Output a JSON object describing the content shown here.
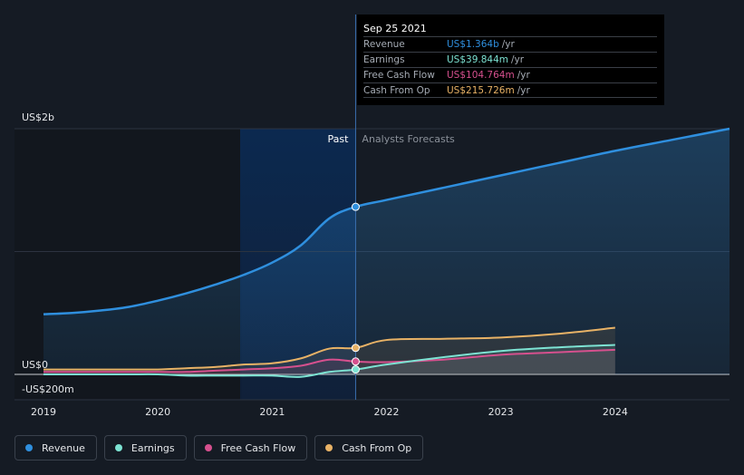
{
  "chart_data": {
    "type": "area",
    "x": [
      2019.0,
      2019.25,
      2019.5,
      2019.75,
      2020.0,
      2020.25,
      2020.5,
      2020.75,
      2021.0,
      2021.25,
      2021.5,
      2021.73,
      2022.0,
      2022.5,
      2023.0,
      2023.5,
      2024.0,
      2024.5,
      2025.0
    ],
    "series": [
      {
        "name": "Revenue",
        "color": "#2f8fde",
        "values": [
          0.49,
          0.5,
          0.52,
          0.55,
          0.6,
          0.66,
          0.73,
          0.81,
          0.91,
          1.05,
          1.27,
          1.364,
          1.42,
          1.52,
          1.62,
          1.72,
          1.82,
          1.91,
          2.0
        ]
      },
      {
        "name": "Earnings",
        "color": "#7de3d3",
        "values": [
          0.0,
          0.0,
          0.0,
          0.0,
          0.0,
          -0.01,
          -0.01,
          -0.01,
          -0.01,
          -0.02,
          0.02,
          0.03984,
          0.08,
          0.14,
          0.19,
          0.22,
          0.24,
          null,
          null
        ]
      },
      {
        "name": "Free Cash Flow",
        "color": "#d6508e",
        "values": [
          0.02,
          0.02,
          0.02,
          0.02,
          0.02,
          0.02,
          0.03,
          0.04,
          0.05,
          0.07,
          0.12,
          0.10476,
          0.1,
          0.12,
          0.16,
          0.18,
          0.2,
          null,
          null
        ]
      },
      {
        "name": "Cash From Op",
        "color": "#e8b266",
        "values": [
          0.04,
          0.04,
          0.04,
          0.04,
          0.04,
          0.05,
          0.06,
          0.08,
          0.09,
          0.13,
          0.21,
          0.21573,
          0.28,
          0.29,
          0.3,
          0.33,
          0.38,
          null,
          null
        ]
      }
    ],
    "ylim": [
      -0.2,
      2.0
    ],
    "xlim": [
      2018.75,
      2025.0
    ],
    "y_tick_labels": [
      {
        "value": 2.0,
        "label": "US$2b"
      },
      {
        "value": 0.0,
        "label": "US$0"
      },
      {
        "value": -0.2,
        "label": "-US$200m"
      }
    ],
    "x_ticks": [
      2019,
      2020,
      2021,
      2022,
      2023,
      2024
    ],
    "x_tick_labels": [
      "2019",
      "2020",
      "2021",
      "2022",
      "2023",
      "2024"
    ],
    "past_start": 2020.72,
    "divider_x": 2021.73,
    "past_label": "Past",
    "forecast_label": "Analysts Forecasts",
    "grid": true
  },
  "tooltip": {
    "date": "Sep 25 2021",
    "rows": [
      {
        "label": "Revenue",
        "value": "US$1.364b",
        "unit": "/yr",
        "color": "#2f8fde"
      },
      {
        "label": "Earnings",
        "value": "US$39.844m",
        "unit": "/yr",
        "color": "#7de3d3"
      },
      {
        "label": "Free Cash Flow",
        "value": "US$104.764m",
        "unit": "/yr",
        "color": "#d6508e"
      },
      {
        "label": "Cash From Op",
        "value": "US$215.726m",
        "unit": "/yr",
        "color": "#e8b266"
      }
    ]
  },
  "legend": [
    {
      "label": "Revenue",
      "color": "#2f8fde"
    },
    {
      "label": "Earnings",
      "color": "#7de3d3"
    },
    {
      "label": "Free Cash Flow",
      "color": "#d6508e"
    },
    {
      "label": "Cash From Op",
      "color": "#e8b266"
    }
  ]
}
